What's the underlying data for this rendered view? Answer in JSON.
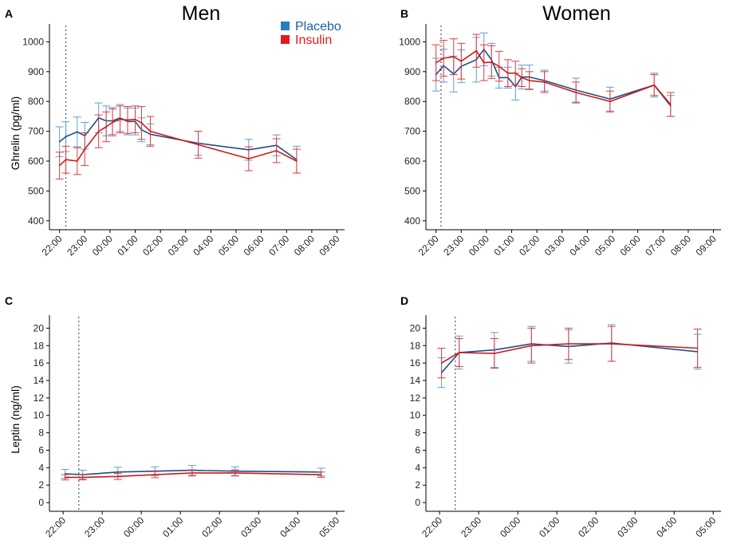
{
  "figure": {
    "col_titles": [
      "Men",
      "Women"
    ],
    "legend": [
      {
        "name": "Placebo",
        "color": "#1f5f9e",
        "swatch": "#2b7bb9"
      },
      {
        "name": "Insulin",
        "color": "#e31a1c",
        "swatch": "#e31a1c"
      }
    ],
    "colors": {
      "placebo_line": "#1f4e8c",
      "placebo_err": "#5aa0d6",
      "insulin_line": "#cc1a1a",
      "insulin_err": "#e83a3a"
    }
  },
  "chart_data": [
    {
      "type": "line",
      "panel_label": "A",
      "ylabel": "Ghrelin (pg/ml)",
      "ylim": [
        370,
        1060
      ],
      "yticks": [
        400,
        500,
        600,
        700,
        800,
        900,
        1000
      ],
      "xlim": [
        21.6,
        33.3
      ],
      "xticks": [
        22,
        23,
        24,
        25,
        26,
        27,
        28,
        29,
        30,
        31,
        32,
        33
      ],
      "xtick_labels": [
        "22:00",
        "23:00",
        "00:00",
        "01:00",
        "02:00",
        "03:00",
        "04:00",
        "05:00",
        "06:00",
        "07:00",
        "08:00",
        "09:00"
      ],
      "vline": 22.25,
      "series": [
        {
          "name": "Placebo",
          "x": [
            22.0,
            22.25,
            22.7,
            23.0,
            23.55,
            23.85,
            24.1,
            24.4,
            24.7,
            25.0,
            25.25,
            25.6,
            27.5,
            29.5,
            30.6,
            31.4
          ],
          "y": [
            665,
            682,
            698,
            685,
            745,
            735,
            735,
            745,
            733,
            733,
            705,
            690,
            660,
            638,
            653,
            605
          ],
          "err": [
            50,
            50,
            50,
            45,
            50,
            50,
            45,
            45,
            45,
            45,
            40,
            35,
            40,
            35,
            35,
            45
          ]
        },
        {
          "name": "Insulin",
          "x": [
            22.0,
            22.25,
            22.7,
            23.0,
            23.55,
            23.85,
            24.1,
            24.4,
            24.7,
            25.0,
            25.25,
            25.6,
            27.5,
            29.5,
            30.6,
            31.4
          ],
          "y": [
            585,
            605,
            600,
            640,
            700,
            715,
            730,
            740,
            738,
            740,
            728,
            700,
            655,
            608,
            635,
            600
          ],
          "err": [
            45,
            45,
            45,
            55,
            55,
            50,
            45,
            45,
            45,
            45,
            55,
            50,
            45,
            40,
            40,
            40
          ]
        }
      ]
    },
    {
      "type": "line",
      "panel_label": "B",
      "ylabel": "",
      "ylim": [
        370,
        1060
      ],
      "yticks": [
        400,
        500,
        600,
        700,
        800,
        900,
        1000
      ],
      "xlim": [
        21.6,
        33.3
      ],
      "xticks": [
        22,
        23,
        24,
        25,
        26,
        27,
        28,
        29,
        30,
        31,
        32,
        33
      ],
      "xtick_labels": [
        "22:00",
        "23:00",
        "00:00",
        "01:00",
        "02:00",
        "03:00",
        "04:00",
        "05:00",
        "06:00",
        "07:00",
        "08:00",
        "09:00"
      ],
      "vline": 22.2,
      "series": [
        {
          "name": "Placebo",
          "x": [
            22.0,
            22.3,
            22.7,
            23.0,
            23.6,
            23.9,
            24.2,
            24.5,
            24.85,
            25.15,
            25.4,
            25.7,
            26.3,
            27.55,
            28.9,
            30.65,
            31.3
          ],
          "y": [
            890,
            920,
            892,
            918,
            940,
            975,
            940,
            880,
            880,
            850,
            882,
            882,
            870,
            838,
            808,
            855,
            785
          ],
          "err": [
            55,
            55,
            60,
            55,
            75,
            55,
            55,
            35,
            35,
            45,
            40,
            40,
            35,
            40,
            40,
            40,
            35
          ]
        },
        {
          "name": "Insulin",
          "x": [
            22.0,
            22.3,
            22.7,
            23.0,
            23.6,
            23.9,
            24.2,
            24.5,
            24.85,
            25.15,
            25.4,
            25.7,
            26.3,
            27.55,
            28.9,
            30.65,
            31.3
          ],
          "y": [
            930,
            945,
            950,
            935,
            970,
            930,
            932,
            918,
            895,
            895,
            880,
            870,
            865,
            830,
            800,
            855,
            790
          ],
          "err": [
            60,
            60,
            60,
            60,
            55,
            60,
            55,
            50,
            45,
            40,
            30,
            30,
            35,
            35,
            35,
            35,
            40
          ]
        }
      ]
    },
    {
      "type": "line",
      "panel_label": "C",
      "ylabel": "Leptin (ng/ml)",
      "ylim": [
        -1,
        21.5
      ],
      "yticks": [
        0,
        2,
        4,
        6,
        8,
        10,
        12,
        14,
        16,
        18,
        20
      ],
      "xlim": [
        21.65,
        29.2
      ],
      "xticks": [
        22,
        23,
        24,
        25,
        26,
        27,
        28,
        29
      ],
      "xtick_labels": [
        "22:00",
        "23:00",
        "00:00",
        "01:00",
        "02:00",
        "03:00",
        "04:00",
        "05:00"
      ],
      "vline": 22.4,
      "series": [
        {
          "name": "Placebo",
          "x": [
            22.05,
            22.5,
            23.4,
            24.35,
            25.3,
            26.4,
            28.6
          ],
          "y": [
            3.3,
            3.2,
            3.5,
            3.6,
            3.7,
            3.6,
            3.5
          ],
          "err": [
            0.5,
            0.5,
            0.55,
            0.5,
            0.55,
            0.5,
            0.45
          ]
        },
        {
          "name": "Insulin",
          "x": [
            22.05,
            22.5,
            23.4,
            24.35,
            25.3,
            26.4,
            28.6
          ],
          "y": [
            2.9,
            2.9,
            3.0,
            3.2,
            3.4,
            3.4,
            3.2
          ],
          "err": [
            0.3,
            0.3,
            0.35,
            0.35,
            0.35,
            0.35,
            0.3
          ]
        }
      ]
    },
    {
      "type": "line",
      "panel_label": "D",
      "ylabel": "",
      "ylim": [
        -1,
        21.5
      ],
      "yticks": [
        0,
        2,
        4,
        6,
        8,
        10,
        12,
        14,
        16,
        18,
        20
      ],
      "xlim": [
        21.65,
        29.2
      ],
      "xticks": [
        22,
        23,
        24,
        25,
        26,
        27,
        28,
        29
      ],
      "xtick_labels": [
        "22:00",
        "23:00",
        "00:00",
        "01:00",
        "02:00",
        "03:00",
        "04:00",
        "05:00"
      ],
      "vline": 22.4,
      "series": [
        {
          "name": "Placebo",
          "x": [
            22.05,
            22.5,
            23.4,
            24.35,
            25.3,
            26.4,
            28.6
          ],
          "y": [
            14.9,
            17.2,
            17.5,
            18.2,
            17.9,
            18.3,
            17.3
          ],
          "err": [
            1.7,
            1.9,
            2.0,
            2.0,
            1.9,
            2.1,
            2.0
          ]
        },
        {
          "name": "Insulin",
          "x": [
            22.05,
            22.5,
            23.4,
            24.35,
            25.3,
            26.4,
            28.6
          ],
          "y": [
            16.0,
            17.2,
            17.1,
            18.0,
            18.2,
            18.2,
            17.7
          ],
          "err": [
            1.7,
            1.6,
            1.7,
            2.0,
            1.8,
            2.0,
            2.2
          ]
        }
      ]
    }
  ]
}
